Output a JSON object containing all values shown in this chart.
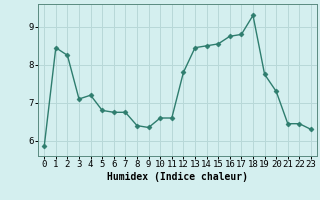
{
  "x": [
    0,
    1,
    2,
    3,
    4,
    5,
    6,
    7,
    8,
    9,
    10,
    11,
    12,
    13,
    14,
    15,
    16,
    17,
    18,
    19,
    20,
    21,
    22,
    23
  ],
  "y": [
    5.85,
    8.45,
    8.25,
    7.1,
    7.2,
    6.8,
    6.75,
    6.75,
    6.4,
    6.35,
    6.6,
    6.6,
    7.8,
    8.45,
    8.5,
    8.55,
    8.75,
    8.8,
    9.3,
    7.75,
    7.3,
    6.45,
    6.45,
    6.3
  ],
  "line_color": "#2e7d6e",
  "marker": "D",
  "markersize": 2.5,
  "linewidth": 1.0,
  "bg_color": "#d4efef",
  "grid_color": "#b8d8d8",
  "xlabel": "Humidex (Indice chaleur)",
  "ylim": [
    5.6,
    9.6
  ],
  "xlim": [
    -0.5,
    23.5
  ],
  "yticks": [
    6,
    7,
    8,
    9
  ],
  "xticks": [
    0,
    1,
    2,
    3,
    4,
    5,
    6,
    7,
    8,
    9,
    10,
    11,
    12,
    13,
    14,
    15,
    16,
    17,
    18,
    19,
    20,
    21,
    22,
    23
  ],
  "xlabel_fontsize": 7,
  "tick_fontsize": 6.5,
  "grid_linewidth": 0.7,
  "spine_color": "#5a8a80"
}
